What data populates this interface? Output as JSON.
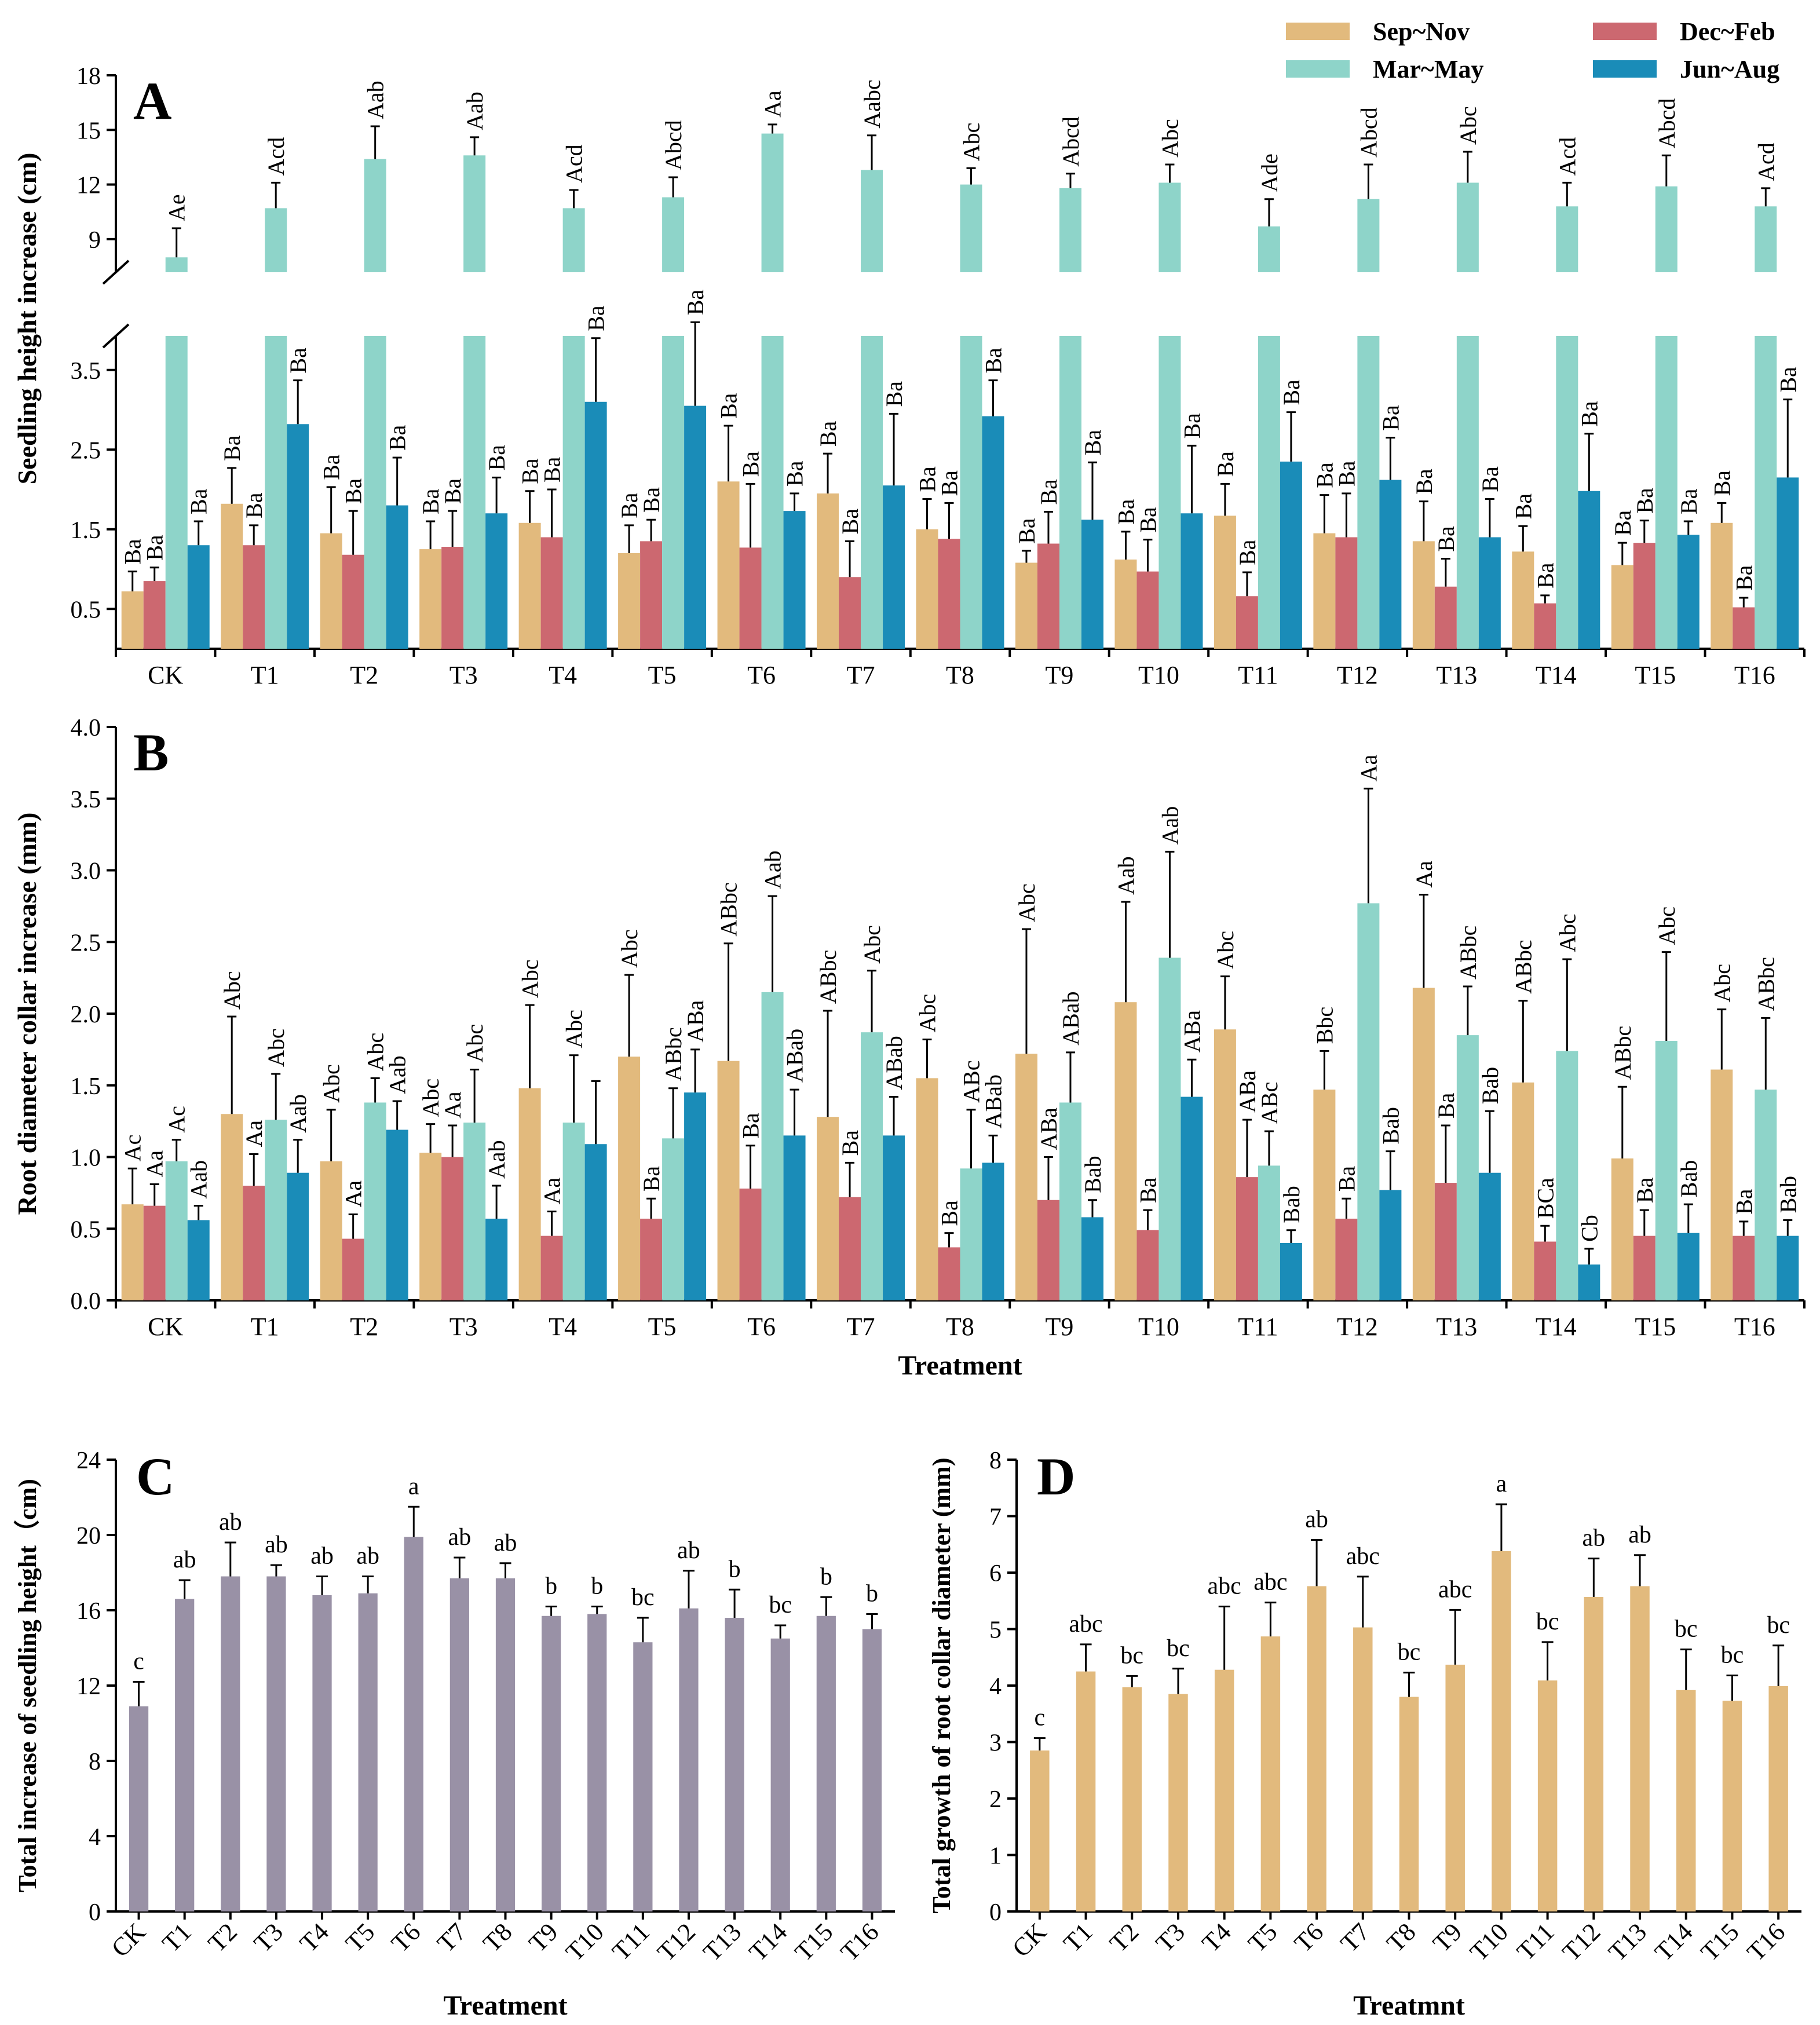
{
  "colors": {
    "sep_nov": "#e2ba7d",
    "dec_feb": "#cc6870",
    "mar_may": "#8ed4c9",
    "jun_aug": "#1a8cb8",
    "panel_c": "#9991a6",
    "panel_d": "#e2ba7d"
  },
  "legend": [
    {
      "label": "Sep~Nov",
      "key": "sep_nov"
    },
    {
      "label": "Dec~Feb",
      "key": "dec_feb"
    },
    {
      "label": "Mar~May",
      "key": "mar_may"
    },
    {
      "label": "Jun~Aug",
      "key": "jun_aug"
    }
  ],
  "chart_data": [
    {
      "panel": "A",
      "type": "bar",
      "ylabel": "Seedling height increase (cm)",
      "xlabel": "",
      "categories": [
        "CK",
        "T1",
        "T2",
        "T3",
        "T4",
        "T5",
        "T6",
        "T7",
        "T8",
        "T9",
        "T10",
        "T11",
        "T12",
        "T13",
        "T14",
        "T15",
        "T16"
      ],
      "axis_break": {
        "lower": [
          0,
          4.2
        ],
        "upper": [
          7.5,
          18
        ]
      },
      "yticks_lower": [
        "0.5",
        "1.5",
        "2.5",
        "3.5"
      ],
      "yticks_upper": [
        "9",
        "12",
        "15",
        "18"
      ],
      "series": [
        {
          "name": "Sep~Nov",
          "color_key": "sep_nov",
          "values": [
            0.72,
            1.82,
            1.45,
            1.25,
            1.58,
            1.2,
            2.1,
            1.95,
            1.5,
            1.08,
            1.12,
            1.67,
            1.45,
            1.35,
            1.22,
            1.05,
            1.58
          ],
          "errors": [
            0.25,
            0.45,
            0.58,
            0.35,
            0.4,
            0.35,
            0.7,
            0.5,
            0.38,
            0.15,
            0.35,
            0.4,
            0.48,
            0.5,
            0.32,
            0.28,
            0.25
          ],
          "labels": [
            "Ba",
            "Ba",
            "Ba",
            "Ba",
            "Ba",
            "Ba",
            "Ba",
            "Ba",
            "Ba",
            "Ba",
            "Ba",
            "Ba",
            "Ba",
            "Ba",
            "Ba",
            "Ba",
            "Ba"
          ]
        },
        {
          "name": "Dec~Feb",
          "color_key": "dec_feb",
          "values": [
            0.85,
            1.3,
            1.18,
            1.28,
            1.4,
            1.35,
            1.27,
            0.9,
            1.38,
            1.32,
            0.97,
            0.66,
            1.4,
            0.78,
            0.57,
            1.33,
            0.52
          ],
          "errors": [
            0.17,
            0.25,
            0.55,
            0.45,
            0.6,
            0.27,
            0.8,
            0.45,
            0.45,
            0.4,
            0.4,
            0.3,
            0.55,
            0.35,
            0.1,
            0.28,
            0.12
          ],
          "labels": [
            "Ba",
            "Ba",
            "Ba",
            "Ba",
            "Ba",
            "Ba",
            "Ba",
            "Ba",
            "Ba",
            "Ba",
            "Ba",
            "Ba",
            "Ba",
            "Ba",
            "Ba",
            "Ba",
            "Ba"
          ]
        },
        {
          "name": "Mar~May",
          "color_key": "mar_may",
          "values": [
            8.0,
            10.7,
            13.4,
            13.6,
            10.7,
            11.3,
            14.8,
            12.8,
            12.0,
            11.8,
            12.1,
            9.7,
            11.2,
            12.1,
            10.8,
            11.9,
            10.8
          ],
          "errors": [
            1.6,
            1.4,
            1.8,
            1.0,
            1.0,
            1.1,
            0.5,
            1.9,
            0.9,
            0.8,
            1.0,
            1.5,
            1.9,
            1.7,
            1.3,
            1.7,
            1.0
          ],
          "labels": [
            "Ae",
            "Acd",
            "Aab",
            "Aab",
            "Acd",
            "Abcd",
            "Aa",
            "Aabc",
            "Abc",
            "Abcd",
            "Abc",
            "Ade",
            "Abcd",
            "Abc",
            "Acd",
            "Abcd",
            "Acd"
          ]
        },
        {
          "name": "Jun~Aug",
          "color_key": "jun_aug",
          "values": [
            1.3,
            2.82,
            1.8,
            1.7,
            3.1,
            3.05,
            1.73,
            2.05,
            2.92,
            1.62,
            1.7,
            2.35,
            2.12,
            1.4,
            1.98,
            1.43,
            2.15
          ],
          "errors": [
            0.3,
            0.55,
            0.6,
            0.45,
            0.8,
            1.05,
            0.22,
            0.9,
            0.45,
            0.72,
            0.85,
            0.62,
            0.53,
            0.48,
            0.72,
            0.17,
            0.98
          ],
          "labels": [
            "Ba",
            "Ba",
            "Ba",
            "Ba",
            "Ba",
            "Ba",
            "Ba",
            "Ba",
            "Ba",
            "Ba",
            "Ba",
            "Ba",
            "Ba",
            "Ba",
            "Ba",
            "Ba",
            "Ba"
          ]
        }
      ]
    },
    {
      "panel": "B",
      "type": "bar",
      "ylabel": "Root diameter collar increase (mm)",
      "xlabel": "Treatment",
      "categories": [
        "CK",
        "T1",
        "T2",
        "T3",
        "T4",
        "T5",
        "T6",
        "T7",
        "T8",
        "T9",
        "T10",
        "T11",
        "T12",
        "T13",
        "T14",
        "T15",
        "T16"
      ],
      "ylim": [
        0,
        4.0
      ],
      "yticks": [
        "0.0",
        "0.5",
        "1.0",
        "1.5",
        "2.0",
        "2.5",
        "3.0",
        "3.5",
        "4.0"
      ],
      "series": [
        {
          "name": "Sep~Nov",
          "color_key": "sep_nov",
          "values": [
            0.67,
            1.3,
            0.97,
            1.03,
            1.48,
            1.7,
            1.67,
            1.28,
            1.55,
            1.72,
            2.08,
            1.89,
            1.47,
            2.18,
            1.52,
            0.99,
            1.61
          ],
          "errors": [
            0.25,
            0.68,
            0.36,
            0.2,
            0.58,
            0.57,
            0.82,
            0.74,
            0.27,
            0.87,
            0.7,
            0.37,
            0.27,
            0.65,
            0.57,
            0.5,
            0.42
          ],
          "labels": [
            "Ac",
            "Abc",
            "Abc",
            "Abc",
            "Abc",
            "Abc",
            "ABbc",
            "ABbc",
            "Abc",
            "Abc",
            "Aab",
            "Abc",
            "Bbc",
            "Aa",
            "ABbc",
            "ABbc",
            "Abc"
          ]
        },
        {
          "name": "Dec~Feb",
          "color_key": "dec_feb",
          "values": [
            0.66,
            0.8,
            0.43,
            1.0,
            0.45,
            0.57,
            0.78,
            0.72,
            0.37,
            0.7,
            0.49,
            0.86,
            0.57,
            0.82,
            0.41,
            0.45,
            0.45
          ],
          "errors": [
            0.15,
            0.22,
            0.17,
            0.22,
            0.17,
            0.14,
            0.3,
            0.24,
            0.1,
            0.3,
            0.14,
            0.4,
            0.14,
            0.4,
            0.11,
            0.18,
            0.1
          ],
          "labels": [
            "Aa",
            "Aa",
            "Aa",
            "Aa",
            "Aa",
            "Ba",
            "Ba",
            "Ba",
            "Ba",
            "ABa",
            "Ba",
            "ABa",
            "Ba",
            "Ba",
            "BCa",
            "Ba",
            "Ba"
          ]
        },
        {
          "name": "Mar~May",
          "color_key": "mar_may",
          "values": [
            0.97,
            1.26,
            1.38,
            1.24,
            1.24,
            1.13,
            2.15,
            1.87,
            0.92,
            1.38,
            2.39,
            0.94,
            2.77,
            1.85,
            1.74,
            1.81,
            1.47
          ],
          "errors": [
            0.15,
            0.32,
            0.17,
            0.37,
            0.47,
            0.35,
            0.67,
            0.43,
            0.41,
            0.35,
            0.74,
            0.24,
            0.8,
            0.34,
            0.64,
            0.62,
            0.5
          ],
          "labels": [
            "Ac",
            "Abc",
            "Abc",
            "Abc",
            "Abc",
            "ABbc",
            "Aab",
            "Abc",
            "ABc",
            "ABab",
            "Aab",
            "ABc",
            "Aa",
            "ABbc",
            "Abc",
            "Abc",
            "ABbc"
          ]
        },
        {
          "name": "Jun~Aug",
          "color_key": "jun_aug",
          "values": [
            0.56,
            0.89,
            1.19,
            0.57,
            1.09,
            1.45,
            1.15,
            1.15,
            0.96,
            0.58,
            1.42,
            0.4,
            0.77,
            0.89,
            0.25,
            0.47,
            0.45
          ],
          "errors": [
            0.1,
            0.23,
            0.2,
            0.23,
            0.44,
            0.3,
            0.32,
            0.27,
            0.19,
            0.12,
            0.26,
            0.09,
            0.27,
            0.43,
            0.11,
            0.2,
            0.11
          ],
          "labels": [
            "Aab",
            "Aab",
            "Aab",
            "Aab",
            "",
            "ABa",
            "ABab",
            "ABab",
            "ABab",
            "Bab",
            "ABa",
            "Bab",
            "Bab",
            "Bab",
            "Cb",
            "Bab",
            "Bab"
          ]
        }
      ]
    },
    {
      "panel": "C",
      "type": "bar",
      "ylabel": "Total increase of seedling height（cm)",
      "xlabel": "Treatment",
      "categories": [
        "CK",
        "T1",
        "T2",
        "T3",
        "T4",
        "T5",
        "T6",
        "T7",
        "T8",
        "T9",
        "T10",
        "T11",
        "T12",
        "T13",
        "T14",
        "T15",
        "T16"
      ],
      "ylim": [
        0,
        24
      ],
      "yticks": [
        "0",
        "4",
        "8",
        "12",
        "16",
        "20",
        "24"
      ],
      "values": [
        10.9,
        16.6,
        17.8,
        17.8,
        16.8,
        16.9,
        19.9,
        17.7,
        17.7,
        15.7,
        15.8,
        14.3,
        16.1,
        15.6,
        14.5,
        15.7,
        15.0
      ],
      "errors": [
        1.3,
        1.0,
        1.8,
        0.6,
        1.0,
        0.9,
        1.6,
        1.1,
        0.8,
        0.5,
        0.4,
        1.3,
        2.0,
        1.5,
        0.7,
        1.0,
        0.8
      ],
      "labels": [
        "c",
        "ab",
        "ab",
        "ab",
        "ab",
        "ab",
        "a",
        "ab",
        "ab",
        "b",
        "b",
        "bc",
        "ab",
        "b",
        "bc",
        "b",
        "b"
      ]
    },
    {
      "panel": "D",
      "type": "bar",
      "ylabel": "Total growth of root collar diameter (mm)",
      "xlabel": "Treatmnt",
      "categories": [
        "CK",
        "T1",
        "T2",
        "T3",
        "T4",
        "T5",
        "T6",
        "T7",
        "T8",
        "T9",
        "T10",
        "T11",
        "T12",
        "T13",
        "T14",
        "T15",
        "T16"
      ],
      "ylim": [
        0,
        8
      ],
      "yticks": [
        "0",
        "1",
        "2",
        "3",
        "4",
        "5",
        "6",
        "7",
        "8"
      ],
      "values": [
        2.85,
        4.25,
        3.97,
        3.85,
        4.28,
        4.87,
        5.76,
        5.03,
        3.8,
        4.37,
        6.38,
        4.09,
        5.57,
        5.76,
        3.92,
        3.73,
        3.99
      ],
      "errors": [
        0.22,
        0.48,
        0.2,
        0.45,
        1.12,
        0.6,
        0.82,
        0.9,
        0.43,
        0.97,
        0.83,
        0.68,
        0.68,
        0.55,
        0.72,
        0.45,
        0.72
      ],
      "labels": [
        "c",
        "abc",
        "bc",
        "bc",
        "abc",
        "abc",
        "ab",
        "abc",
        "bc",
        "abc",
        "a",
        "bc",
        "ab",
        "ab",
        "bc",
        "bc",
        "bc"
      ]
    }
  ]
}
